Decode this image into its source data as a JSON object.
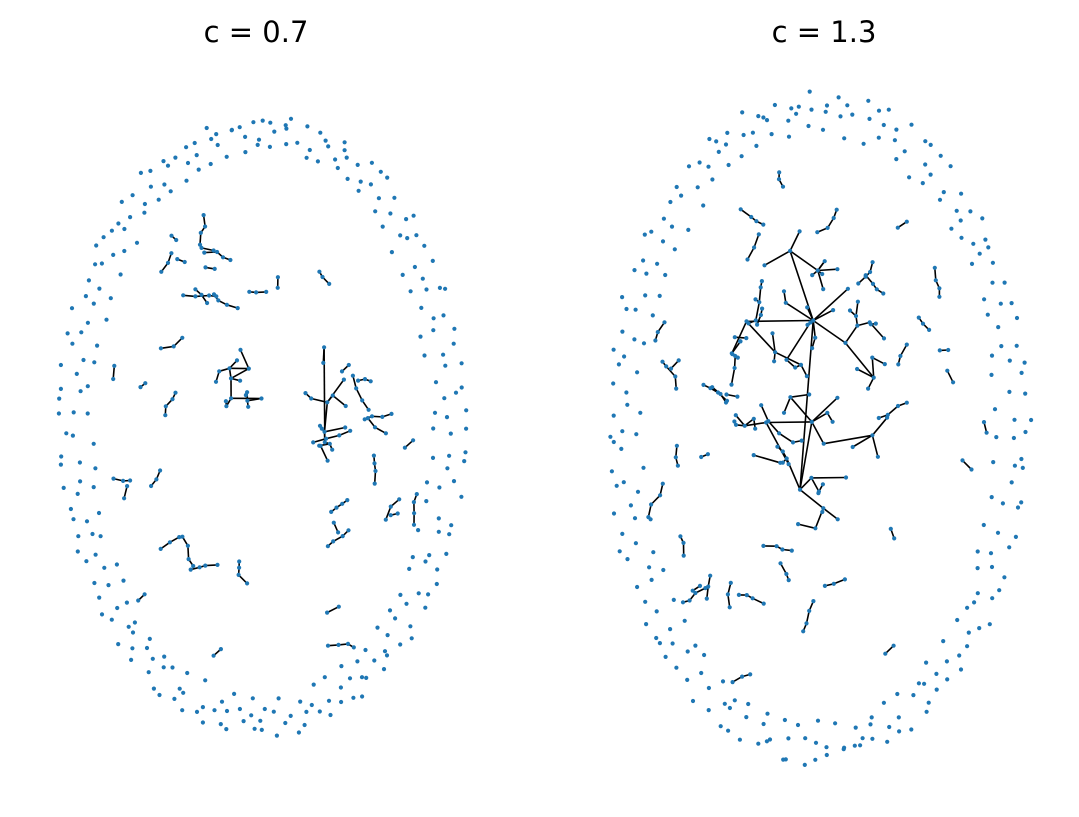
{
  "figure": {
    "panels": [
      {
        "title": "c = 0.7",
        "node_color": "#1f77b4",
        "edge_color": "#000000"
      },
      {
        "title": "c = 1.3",
        "node_color": "#1f77b4",
        "edge_color": "#000000"
      }
    ]
  }
}
